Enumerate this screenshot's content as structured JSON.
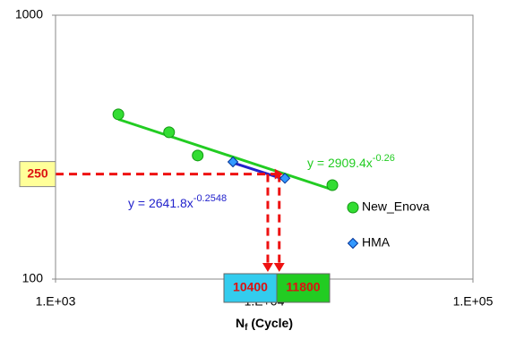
{
  "chart_data": {
    "type": "scatter",
    "xlabel": "N",
    "xlabel_subscript": "f",
    "xlabel_suffix": " (Cycle)",
    "xscale": "log",
    "yscale": "log",
    "xlim": [
      1000,
      100000
    ],
    "ylim": [
      100,
      1000
    ],
    "xticks": [
      {
        "value": 1000,
        "label": "1.E+03"
      },
      {
        "value": 10000,
        "label": "1.E+04"
      },
      {
        "value": 100000,
        "label": "1.E+05"
      }
    ],
    "yticks": [
      100,
      1000
    ],
    "series": [
      {
        "name": "New_Enova",
        "color": "#33dd33",
        "marker": "circle",
        "x": [
          2000,
          3500,
          4800,
          21200
        ],
        "values": [
          421,
          360,
          294,
          227
        ],
        "trendline": {
          "coefficient": 2909.4,
          "exponent": -0.26,
          "label": "y = 2909.4x",
          "label_exponent": "-0.26",
          "color": "#22cc22"
        }
      },
      {
        "name": "HMA",
        "color": "#3399ff",
        "marker": "diamond",
        "x": [
          7080,
          12560
        ],
        "values": [
          278,
          241
        ],
        "trendline": {
          "coefficient": 2641.8,
          "exponent": -0.2548,
          "label": "y = 2641.8x",
          "label_exponent": "-0.2548",
          "color": "#2222cc"
        }
      }
    ],
    "annotations": {
      "y_value": 250,
      "x_values": [
        10400,
        11800
      ],
      "line_color": "#ee1111"
    }
  }
}
